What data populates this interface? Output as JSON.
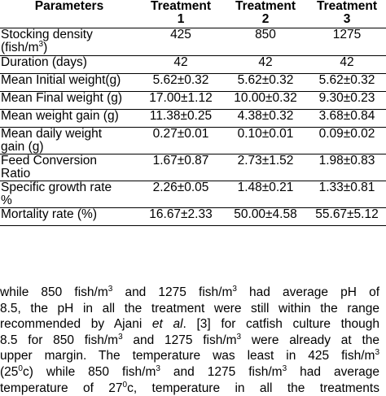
{
  "table": {
    "headers": {
      "parameters": "Parameters",
      "t1_a": "Treatment",
      "t1_b": "1",
      "t2_a": "Treatment",
      "t2_b": "2",
      "t3_a": "Treatment",
      "t3_b": "3"
    },
    "rows": [
      {
        "label_a": "Stocking density",
        "label_b": "(fish/m",
        "label_sup": "3",
        "label_c": ")",
        "v1": "425",
        "v2": "850",
        "v3": "1275"
      },
      {
        "label": "Duration (days)",
        "v1": "42",
        "v2": "42",
        "v3": "42"
      },
      {
        "label": "Mean Initial weight(g)",
        "v1": "5.62±0.32",
        "v2": "5.62±0.32",
        "v3": "5.62±0.32"
      },
      {
        "label": "Mean Final weight (g)",
        "v1": "17.00±1.12",
        "v2": "10.00±0.32",
        "v3": "9.30±0.23"
      },
      {
        "label": "Mean weight gain (g)",
        "v1": "11.38±0.25",
        "v2": "4.38±0.32",
        "v3": "3.68±0.84"
      },
      {
        "label_a": "Mean daily weight",
        "label_b": "gain (g)",
        "v1": "0.27±0.01",
        "v2": "0.10±0.01",
        "v3": "0.09±0.02"
      },
      {
        "label_a": "Feed Conversion",
        "label_b": "Ratio",
        "v1": "1.67±0.87",
        "v2": "2.73±1.52",
        "v3": "1.98±0.83"
      },
      {
        "label_a": "Specific growth rate",
        "label_b": "%",
        "v1": "2.26±0.05",
        "v2": "1.48±0.21",
        "v3": "1.33±0.81"
      },
      {
        "label": "Mortality rate (%)",
        "v1": "16.67±2.33",
        "v2": "50.00±4.58",
        "v3": "55.67±5.12"
      }
    ]
  },
  "prose": {
    "l1a": "while 850 fish/m",
    "l1s1": "3",
    "l1b": " and 1275 fish/m",
    "l1s2": "3",
    "l1c": " had average pH of",
    "l2": "8.5, the pH in all the treatment were still within the range",
    "l3a": "recommended by Ajani ",
    "l3i": "et al",
    "l3b": ". [3] for catfish culture though",
    "l4a": "8.5 for 850 fish/m",
    "l4s1": "3",
    "l4b": " and 1275 fish/m",
    "l4s2": "3",
    "l4c": " were already at the",
    "l5a": "upper margin. The temperature was least in 425 fish/m",
    "l5s": "3",
    "l6a": "(25",
    "l6s1": "0",
    "l6b": "c) while 850 fish/m",
    "l6s2": "3",
    "l6c": " and 1275 fish/m",
    "l6s3": "3",
    "l6d": " had average",
    "l7a": "temperature of 27",
    "l7s": "0",
    "l7b": "c, temperature in all the treatments"
  }
}
